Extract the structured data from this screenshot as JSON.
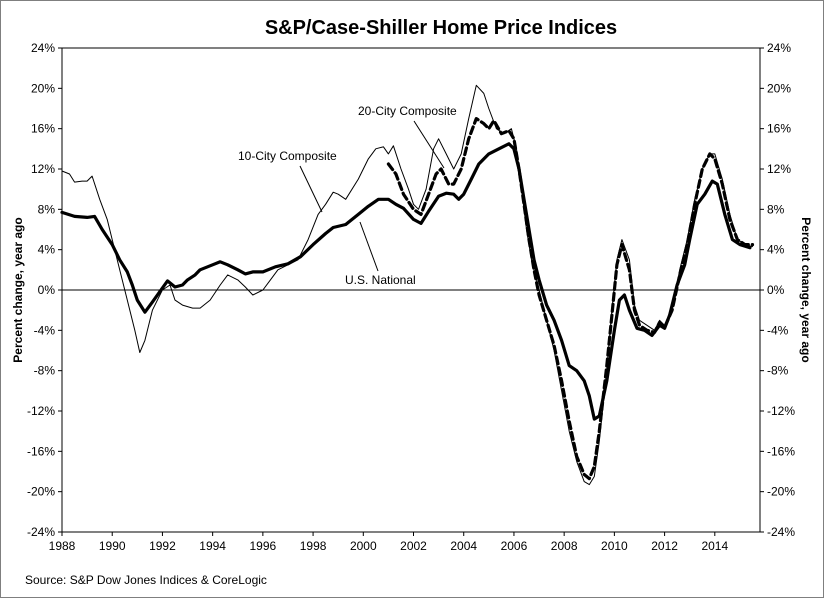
{
  "chart_data": {
    "type": "line",
    "title": "S&P/Case-Shiller Home Price Indices",
    "ylabel_left": "Percent change, year ago",
    "ylabel_right": "Percent change, year ago",
    "source": "Source: S&P Dow Jones Indices & CoreLogic",
    "xlim": [
      1988,
      2015.8
    ],
    "ylim": [
      -24,
      24
    ],
    "x_ticks": [
      1988,
      1990,
      1992,
      1994,
      1996,
      1998,
      2000,
      2002,
      2004,
      2006,
      2008,
      2010,
      2012,
      2014
    ],
    "x_tick_labels": [
      "1988",
      "1990",
      "1992",
      "1994",
      "1996",
      "1998",
      "2000",
      "2002",
      "2004",
      "2006",
      "2008",
      "2010",
      "2012",
      "2014"
    ],
    "y_ticks": [
      -24,
      -20,
      -16,
      -12,
      -8,
      -4,
      0,
      4,
      8,
      12,
      16,
      20,
      24
    ],
    "y_tick_labels": [
      "-24%",
      "-20%",
      "-16%",
      "-12%",
      "-8%",
      "-4%",
      "0%",
      "4%",
      "8%",
      "12%",
      "16%",
      "20%",
      "24%"
    ],
    "zero_line": true,
    "annotations": [
      {
        "text": "10-City Composite",
        "series": "10-City Composite"
      },
      {
        "text": "20-City Composite",
        "series": "20-City Composite"
      },
      {
        "text": "U.S. National",
        "series": "U.S. National"
      }
    ],
    "series": [
      {
        "name": "U.S. National",
        "style": "thick-solid",
        "color": "#000000",
        "points": [
          [
            1988.0,
            7.7
          ],
          [
            1988.5,
            7.3
          ],
          [
            1989.0,
            7.2
          ],
          [
            1989.3,
            7.3
          ],
          [
            1989.6,
            6.0
          ],
          [
            1990.0,
            4.5
          ],
          [
            1990.3,
            3.0
          ],
          [
            1990.6,
            1.8
          ],
          [
            1990.8,
            0.5
          ],
          [
            1991.0,
            -1.0
          ],
          [
            1991.3,
            -2.2
          ],
          [
            1991.6,
            -1.2
          ],
          [
            1992.0,
            0.2
          ],
          [
            1992.2,
            0.9
          ],
          [
            1992.5,
            0.3
          ],
          [
            1992.8,
            0.5
          ],
          [
            1993.0,
            1.0
          ],
          [
            1993.3,
            1.5
          ],
          [
            1993.5,
            2.0
          ],
          [
            1994.0,
            2.5
          ],
          [
            1994.3,
            2.8
          ],
          [
            1994.6,
            2.5
          ],
          [
            1995.0,
            2.0
          ],
          [
            1995.3,
            1.6
          ],
          [
            1995.6,
            1.8
          ],
          [
            1996.0,
            1.8
          ],
          [
            1996.5,
            2.3
          ],
          [
            1997.0,
            2.6
          ],
          [
            1997.5,
            3.3
          ],
          [
            1998.0,
            4.5
          ],
          [
            1998.5,
            5.6
          ],
          [
            1998.8,
            6.2
          ],
          [
            1999.3,
            6.5
          ],
          [
            1999.8,
            7.5
          ],
          [
            2000.2,
            8.3
          ],
          [
            2000.6,
            9.0
          ],
          [
            2001.0,
            9.0
          ],
          [
            2001.3,
            8.5
          ],
          [
            2001.6,
            8.1
          ],
          [
            2002.0,
            7.0
          ],
          [
            2002.3,
            6.6
          ],
          [
            2002.6,
            7.8
          ],
          [
            2003.0,
            9.3
          ],
          [
            2003.3,
            9.6
          ],
          [
            2003.6,
            9.5
          ],
          [
            2003.8,
            9.0
          ],
          [
            2004.0,
            9.5
          ],
          [
            2004.3,
            11.0
          ],
          [
            2004.6,
            12.5
          ],
          [
            2005.0,
            13.5
          ],
          [
            2005.4,
            14.0
          ],
          [
            2005.8,
            14.5
          ],
          [
            2006.0,
            14.0
          ],
          [
            2006.2,
            12.0
          ],
          [
            2006.4,
            9.0
          ],
          [
            2006.6,
            6.0
          ],
          [
            2006.8,
            3.0
          ],
          [
            2007.0,
            1.0
          ],
          [
            2007.3,
            -1.5
          ],
          [
            2007.6,
            -3.0
          ],
          [
            2007.9,
            -5.0
          ],
          [
            2008.2,
            -7.5
          ],
          [
            2008.5,
            -8.0
          ],
          [
            2008.8,
            -9.0
          ],
          [
            2009.0,
            -10.5
          ],
          [
            2009.2,
            -12.8
          ],
          [
            2009.4,
            -12.5
          ],
          [
            2009.7,
            -9.0
          ],
          [
            2010.0,
            -4.0
          ],
          [
            2010.2,
            -1.0
          ],
          [
            2010.4,
            -0.5
          ],
          [
            2010.6,
            -2.0
          ],
          [
            2010.9,
            -3.8
          ],
          [
            2011.2,
            -4.0
          ],
          [
            2011.5,
            -4.5
          ],
          [
            2011.8,
            -3.5
          ],
          [
            2012.0,
            -3.8
          ],
          [
            2012.2,
            -2.5
          ],
          [
            2012.5,
            0.5
          ],
          [
            2012.8,
            2.5
          ],
          [
            2013.0,
            5.0
          ],
          [
            2013.3,
            8.5
          ],
          [
            2013.6,
            9.5
          ],
          [
            2013.9,
            10.8
          ],
          [
            2014.1,
            10.5
          ],
          [
            2014.4,
            7.5
          ],
          [
            2014.7,
            5.0
          ],
          [
            2015.0,
            4.5
          ],
          [
            2015.4,
            4.2
          ]
        ]
      },
      {
        "name": "10-City Composite",
        "style": "thin-solid",
        "color": "#000000",
        "points": [
          [
            1988.0,
            11.8
          ],
          [
            1988.3,
            11.5
          ],
          [
            1988.5,
            10.7
          ],
          [
            1988.8,
            10.8
          ],
          [
            1989.0,
            10.8
          ],
          [
            1989.2,
            11.3
          ],
          [
            1989.5,
            9.0
          ],
          [
            1989.8,
            7.0
          ],
          [
            1990.0,
            5.0
          ],
          [
            1990.3,
            2.0
          ],
          [
            1990.6,
            -1.0
          ],
          [
            1990.9,
            -4.0
          ],
          [
            1991.1,
            -6.2
          ],
          [
            1991.3,
            -5.0
          ],
          [
            1991.6,
            -2.0
          ],
          [
            1992.0,
            0.0
          ],
          [
            1992.3,
            0.5
          ],
          [
            1992.5,
            -1.0
          ],
          [
            1992.8,
            -1.5
          ],
          [
            1993.2,
            -1.8
          ],
          [
            1993.5,
            -1.8
          ],
          [
            1993.9,
            -1.0
          ],
          [
            1994.3,
            0.5
          ],
          [
            1994.6,
            1.5
          ],
          [
            1995.0,
            1.0
          ],
          [
            1995.3,
            0.3
          ],
          [
            1995.6,
            -0.5
          ],
          [
            1996.0,
            0.0
          ],
          [
            1996.3,
            1.0
          ],
          [
            1996.6,
            2.0
          ],
          [
            1997.0,
            2.5
          ],
          [
            1997.4,
            3.0
          ],
          [
            1997.8,
            5.0
          ],
          [
            1998.2,
            7.5
          ],
          [
            1998.5,
            8.5
          ],
          [
            1998.8,
            9.7
          ],
          [
            1999.0,
            9.5
          ],
          [
            1999.3,
            9.0
          ],
          [
            1999.8,
            11.0
          ],
          [
            2000.2,
            13.0
          ],
          [
            2000.5,
            14.0
          ],
          [
            2000.8,
            14.2
          ],
          [
            2001.0,
            13.5
          ],
          [
            2001.2,
            14.3
          ],
          [
            2001.5,
            12.0
          ],
          [
            2001.8,
            10.0
          ],
          [
            2002.0,
            8.5
          ],
          [
            2002.2,
            8.0
          ],
          [
            2002.5,
            10.0
          ],
          [
            2002.8,
            14.0
          ],
          [
            2003.0,
            15.0
          ],
          [
            2003.3,
            13.5
          ],
          [
            2003.6,
            12.0
          ],
          [
            2003.9,
            13.5
          ],
          [
            2004.2,
            17.0
          ],
          [
            2004.5,
            20.3
          ],
          [
            2004.8,
            19.5
          ],
          [
            2005.0,
            18.0
          ],
          [
            2005.3,
            16.0
          ],
          [
            2005.6,
            15.5
          ],
          [
            2005.9,
            16.0
          ],
          [
            2006.1,
            14.0
          ],
          [
            2006.3,
            10.0
          ],
          [
            2006.5,
            6.0
          ],
          [
            2006.7,
            3.0
          ],
          [
            2007.0,
            0.0
          ],
          [
            2007.3,
            -3.0
          ],
          [
            2007.6,
            -6.0
          ],
          [
            2007.9,
            -10.0
          ],
          [
            2008.2,
            -14.0
          ],
          [
            2008.5,
            -17.0
          ],
          [
            2008.8,
            -19.0
          ],
          [
            2009.0,
            -19.3
          ],
          [
            2009.2,
            -18.5
          ],
          [
            2009.4,
            -15.0
          ],
          [
            2009.7,
            -8.0
          ],
          [
            2009.9,
            -2.0
          ],
          [
            2010.1,
            3.0
          ],
          [
            2010.3,
            5.0
          ],
          [
            2010.6,
            3.0
          ],
          [
            2010.8,
            -1.5
          ],
          [
            2011.0,
            -3.0
          ],
          [
            2011.3,
            -3.5
          ],
          [
            2011.6,
            -4.0
          ],
          [
            2011.8,
            -3.0
          ],
          [
            2012.0,
            -3.5
          ],
          [
            2012.3,
            -2.0
          ],
          [
            2012.6,
            2.0
          ],
          [
            2012.9,
            5.0
          ],
          [
            2013.2,
            9.0
          ],
          [
            2013.5,
            12.0
          ],
          [
            2013.8,
            13.5
          ],
          [
            2014.0,
            13.5
          ],
          [
            2014.3,
            11.0
          ],
          [
            2014.6,
            7.5
          ],
          [
            2014.9,
            5.0
          ],
          [
            2015.2,
            4.5
          ],
          [
            2015.5,
            4.3
          ]
        ]
      },
      {
        "name": "20-City Composite",
        "style": "thick-dashed",
        "color": "#000000",
        "points": [
          [
            2001.0,
            12.5
          ],
          [
            2001.3,
            11.5
          ],
          [
            2001.6,
            9.5
          ],
          [
            2002.0,
            8.0
          ],
          [
            2002.3,
            7.5
          ],
          [
            2002.6,
            9.5
          ],
          [
            2002.9,
            11.5
          ],
          [
            2003.1,
            12.0
          ],
          [
            2003.4,
            10.5
          ],
          [
            2003.6,
            10.5
          ],
          [
            2003.9,
            12.0
          ],
          [
            2004.2,
            15.0
          ],
          [
            2004.5,
            17.0
          ],
          [
            2004.8,
            16.5
          ],
          [
            2005.0,
            16.0
          ],
          [
            2005.2,
            16.8
          ],
          [
            2005.5,
            15.5
          ],
          [
            2005.8,
            15.8
          ],
          [
            2006.0,
            15.0
          ],
          [
            2006.2,
            12.0
          ],
          [
            2006.4,
            8.5
          ],
          [
            2006.6,
            5.0
          ],
          [
            2006.8,
            2.0
          ],
          [
            2007.0,
            -0.5
          ],
          [
            2007.3,
            -3.0
          ],
          [
            2007.6,
            -5.5
          ],
          [
            2007.9,
            -9.0
          ],
          [
            2008.2,
            -13.0
          ],
          [
            2008.5,
            -16.5
          ],
          [
            2008.8,
            -18.3
          ],
          [
            2009.0,
            -18.7
          ],
          [
            2009.2,
            -17.5
          ],
          [
            2009.4,
            -14.0
          ],
          [
            2009.7,
            -7.5
          ],
          [
            2009.9,
            -2.5
          ],
          [
            2010.1,
            2.5
          ],
          [
            2010.3,
            4.5
          ],
          [
            2010.6,
            2.0
          ],
          [
            2010.8,
            -2.0
          ],
          [
            2011.0,
            -3.5
          ],
          [
            2011.3,
            -4.0
          ],
          [
            2011.6,
            -4.2
          ],
          [
            2011.8,
            -3.2
          ],
          [
            2012.0,
            -3.7
          ],
          [
            2012.3,
            -2.0
          ],
          [
            2012.6,
            1.5
          ],
          [
            2012.9,
            4.5
          ],
          [
            2013.2,
            8.5
          ],
          [
            2013.5,
            12.0
          ],
          [
            2013.8,
            13.5
          ],
          [
            2014.0,
            13.0
          ],
          [
            2014.3,
            10.5
          ],
          [
            2014.6,
            7.0
          ],
          [
            2014.9,
            5.0
          ],
          [
            2015.2,
            4.5
          ],
          [
            2015.5,
            4.5
          ]
        ]
      }
    ]
  }
}
